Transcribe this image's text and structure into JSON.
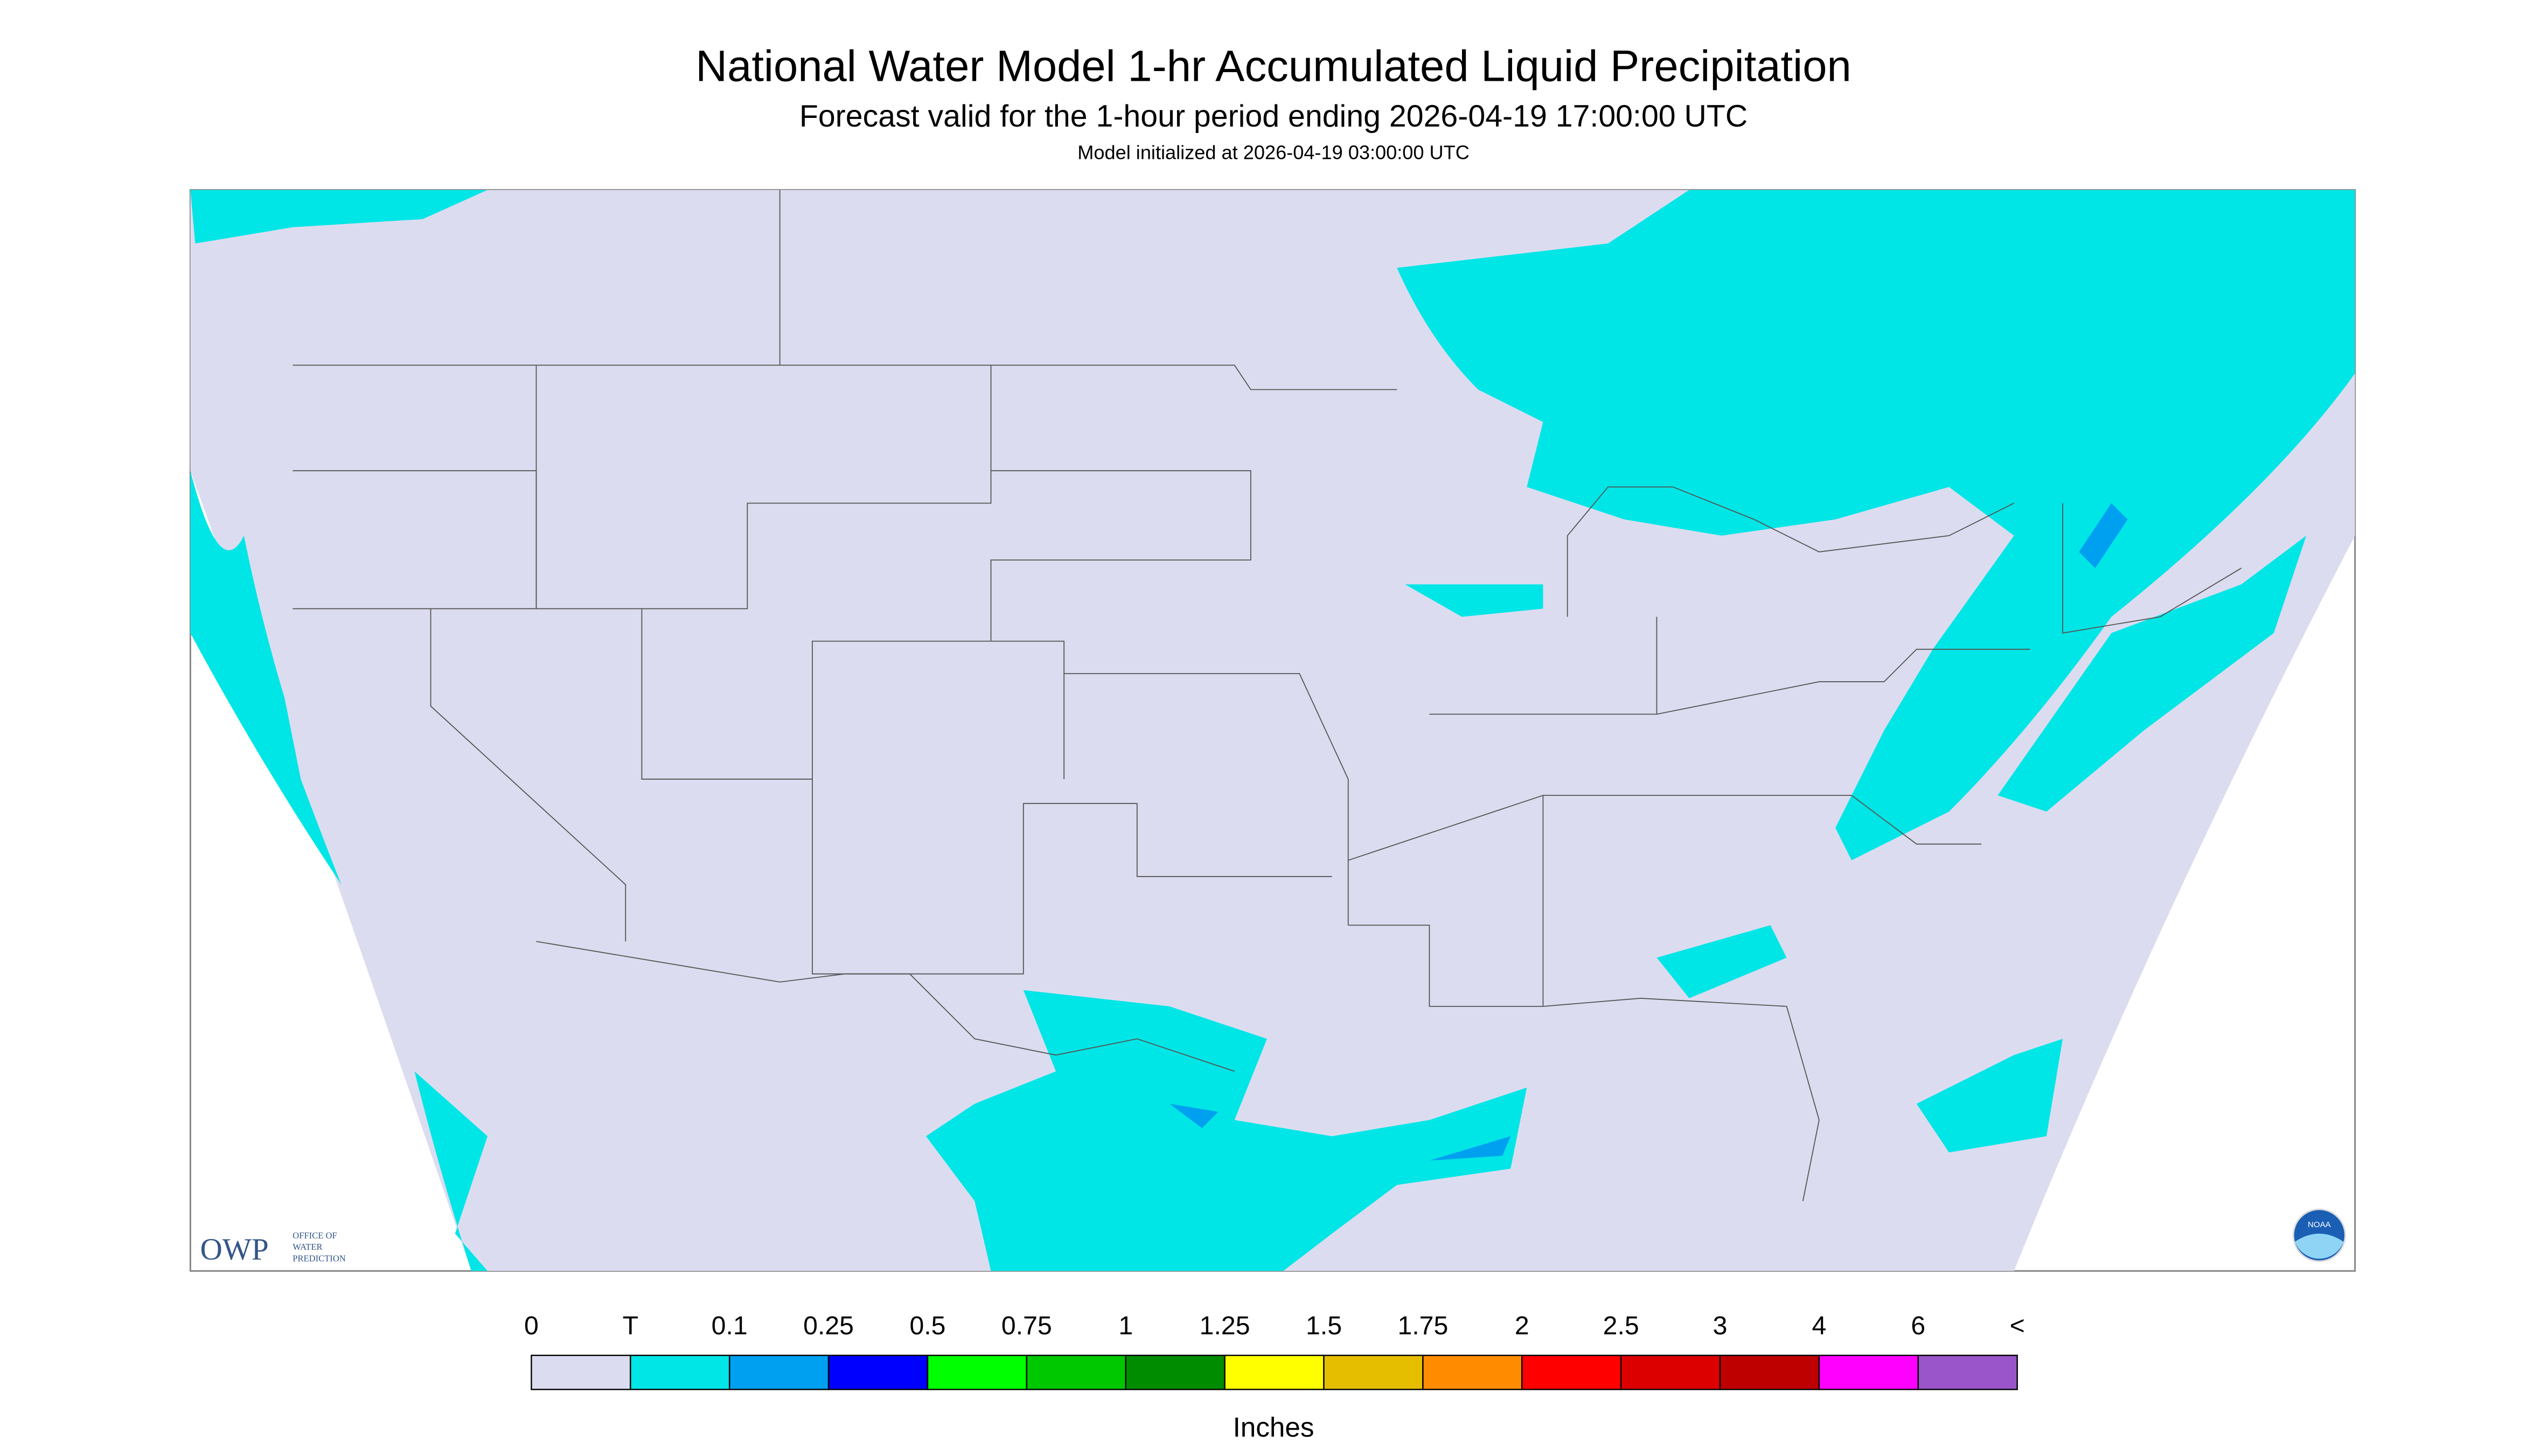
{
  "header": {
    "title": "National Water Model 1-hr Accumulated Liquid Precipitation",
    "subtitle": "Forecast valid for the 1-hour period ending 2026-04-19 17:00:00 UTC",
    "note": "Model initialized at 2026-04-19 03:00:00 UTC"
  },
  "legend": {
    "labels": [
      "0",
      "T",
      "0.1",
      "0.25",
      "0.5",
      "0.75",
      "1",
      "1.25",
      "1.5",
      "1.75",
      "2",
      "2.5",
      "3",
      "4",
      "6",
      "<"
    ],
    "colors": [
      "#dcdcf0",
      "#00e6e6",
      "#00a0f0",
      "#0000ff",
      "#00ff00",
      "#00c800",
      "#008c00",
      "#ffff00",
      "#e6be00",
      "#ff8c00",
      "#ff0000",
      "#dc0000",
      "#be0000",
      "#ff00ff",
      "#9955c9"
    ],
    "units": "Inches"
  },
  "logos": {
    "owp": "OWP",
    "owp_lines": [
      "OFFICE OF",
      "WATER",
      "PREDICTION"
    ],
    "noaa": "NOAA"
  }
}
